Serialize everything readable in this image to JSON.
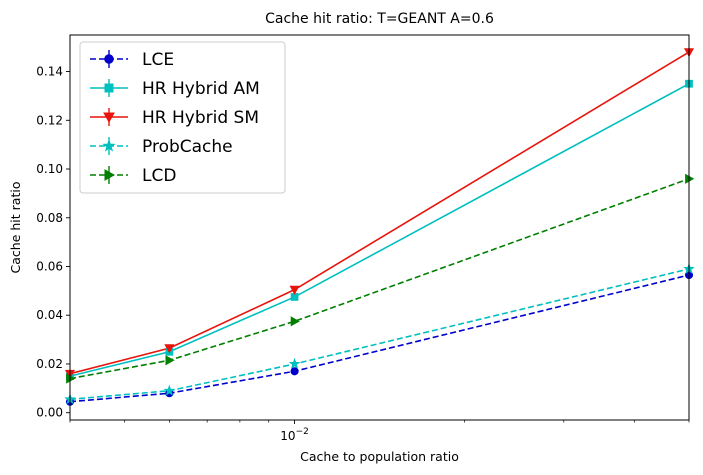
{
  "chart_data": {
    "type": "line",
    "title": "Cache hit ratio: T=GEANT A=0.6",
    "xlabel": "Cache to population ratio",
    "ylabel": "Cache hit ratio",
    "xscale": "log",
    "xlim": [
      0.004,
      0.05
    ],
    "ylim": [
      -0.003,
      0.155
    ],
    "x": [
      0.004,
      0.006,
      0.01,
      0.05
    ],
    "x_ticks": [
      {
        "value": 0.01,
        "base": "10",
        "exp": "−2"
      }
    ],
    "y_ticks": [
      "0.00",
      "0.02",
      "0.04",
      "0.06",
      "0.08",
      "0.10",
      "0.12",
      "0.14"
    ],
    "y_tick_values": [
      0.0,
      0.02,
      0.04,
      0.06,
      0.08,
      0.1,
      0.12,
      0.14
    ],
    "grid": false,
    "legend_position": "top-left",
    "series": [
      {
        "name": "LCE",
        "values": [
          0.0045,
          0.008,
          0.017,
          0.0565
        ],
        "color": "#0000cc",
        "dash": "dashed",
        "marker": "circle"
      },
      {
        "name": "HR Hybrid AM",
        "values": [
          0.015,
          0.025,
          0.0475,
          0.135
        ],
        "color": "#00bfbf",
        "dash": "solid",
        "marker": "square"
      },
      {
        "name": "HR Hybrid SM",
        "values": [
          0.016,
          0.0265,
          0.0505,
          0.148
        ],
        "color": "#e8140c",
        "dash": "solid",
        "marker": "triangle-down"
      },
      {
        "name": "ProbCache",
        "values": [
          0.0055,
          0.009,
          0.02,
          0.059
        ],
        "color": "#00bfbf",
        "dash": "dashed",
        "marker": "star"
      },
      {
        "name": "LCD",
        "values": [
          0.014,
          0.0215,
          0.0375,
          0.096
        ],
        "color": "#007f00",
        "dash": "dashed",
        "marker": "triangle-right"
      }
    ]
  }
}
